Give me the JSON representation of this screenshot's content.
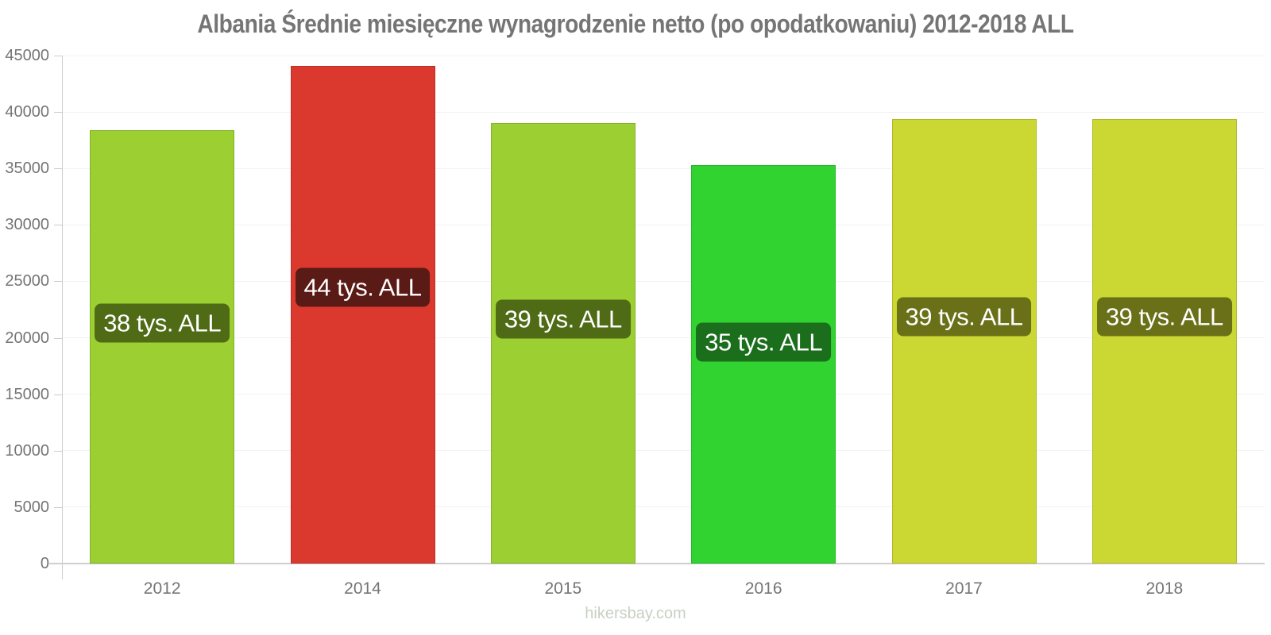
{
  "title": "Albania Średnie miesięczne wynagrodzenie netto (po opodatkowaniu) 2012-2018 ALL",
  "footer": {
    "text": "hikersbay.com"
  },
  "chart_data": {
    "type": "bar",
    "title": "Albania Średnie miesięczne wynagrodzenie netto (po opodatkowaniu) 2012-2018 ALL",
    "categories": [
      "2012",
      "2014",
      "2015",
      "2016",
      "2017",
      "2018"
    ],
    "values": [
      38400,
      44100,
      39000,
      35300,
      39400,
      39400
    ],
    "bar_labels": [
      "38 tys. ALL",
      "44 tys. ALL",
      "39 tys. ALL",
      "35 tys. ALL",
      "39 tys. ALL",
      "39 tys. ALL"
    ],
    "bar_colors": [
      "#9bcf32",
      "#db382e",
      "#9bcf32",
      "#30d330",
      "#cbd733",
      "#cbd733"
    ],
    "bar_label_bg_colors": [
      "#4f6b15",
      "#5a1a15",
      "#4f6b15",
      "#1b6e1b",
      "#697018",
      "#697018"
    ],
    "bar_label_text_color": "#ffffff",
    "xlabel": "",
    "ylabel": "",
    "ylim": [
      0,
      45000
    ],
    "yticks": [
      0,
      5000,
      10000,
      15000,
      20000,
      25000,
      30000,
      35000,
      40000,
      45000
    ],
    "unit": "ALL",
    "legend": "none",
    "grid": "horizontal-light",
    "title_color": "#757575",
    "axis_label_color": "#757575",
    "axis_line_color": "#cccccc",
    "gridline_color": "#f2f2f2",
    "watermark_color": "#c7d0c3"
  }
}
